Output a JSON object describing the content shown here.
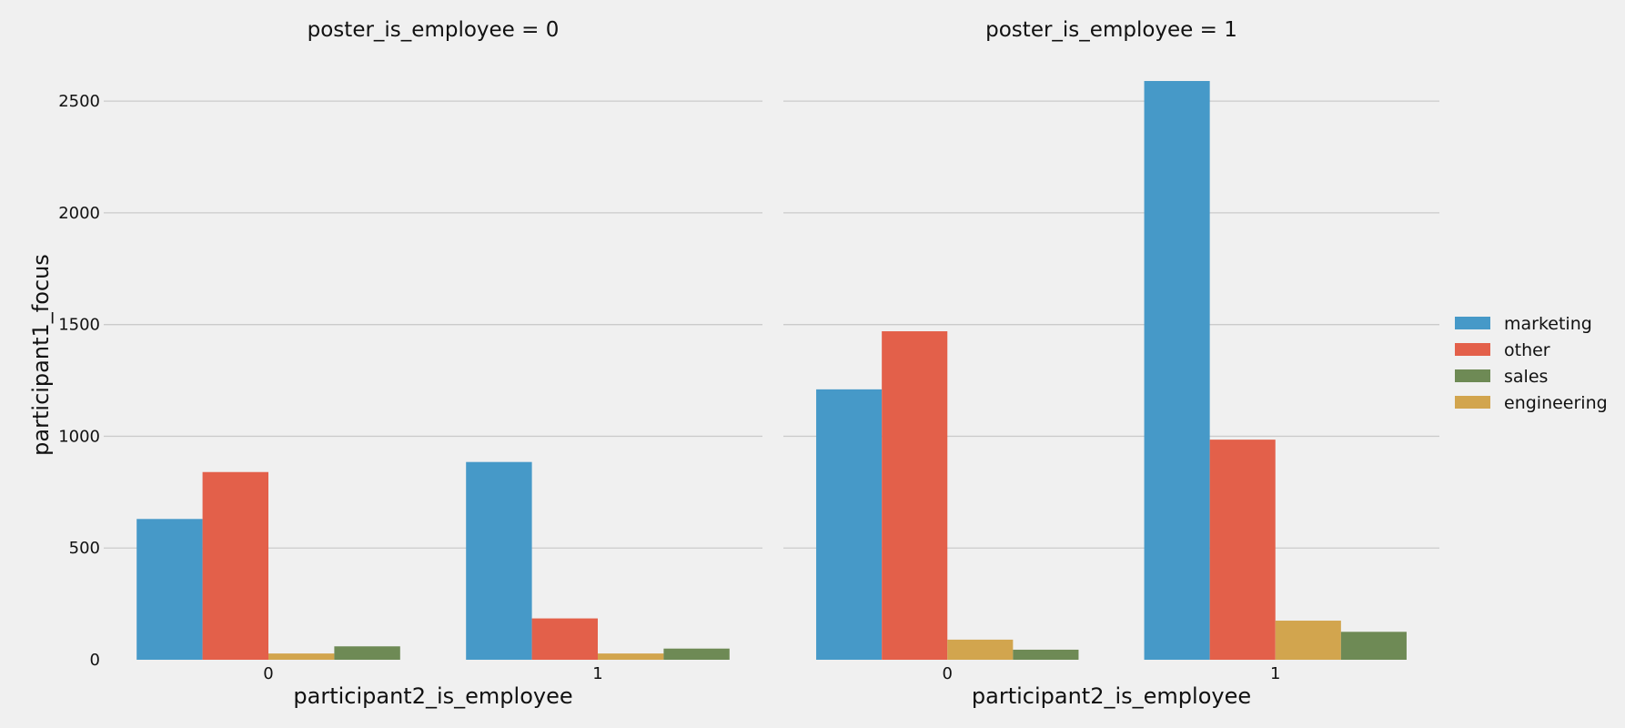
{
  "chart_data": {
    "type": "bar",
    "ylabel": "participant1_focus",
    "xlabel": "participant2_is_employee",
    "ylim": [
      0,
      2700
    ],
    "yticks": [
      0,
      500,
      1000,
      1500,
      2000,
      2500
    ],
    "grid": true,
    "legend_position": "right",
    "categories": [
      "0",
      "1"
    ],
    "series_names": [
      "marketing",
      "other",
      "sales",
      "engineering"
    ],
    "series_colors": {
      "marketing": "#4699c8",
      "other": "#e3604a",
      "sales": "#6e8a55",
      "engineering": "#d2a54e"
    },
    "bar_order": [
      "marketing",
      "other",
      "engineering",
      "sales"
    ],
    "panels": [
      {
        "title": "poster_is_employee = 0",
        "series": [
          {
            "name": "marketing",
            "values": [
              630,
              885
            ]
          },
          {
            "name": "other",
            "values": [
              840,
              185
            ]
          },
          {
            "name": "sales",
            "values": [
              60,
              50
            ]
          },
          {
            "name": "engineering",
            "values": [
              28,
              28
            ]
          }
        ]
      },
      {
        "title": "poster_is_employee = 1",
        "series": [
          {
            "name": "marketing",
            "values": [
              1210,
              2590
            ]
          },
          {
            "name": "other",
            "values": [
              1470,
              985
            ]
          },
          {
            "name": "sales",
            "values": [
              45,
              125
            ]
          },
          {
            "name": "engineering",
            "values": [
              90,
              175
            ]
          }
        ]
      }
    ]
  }
}
